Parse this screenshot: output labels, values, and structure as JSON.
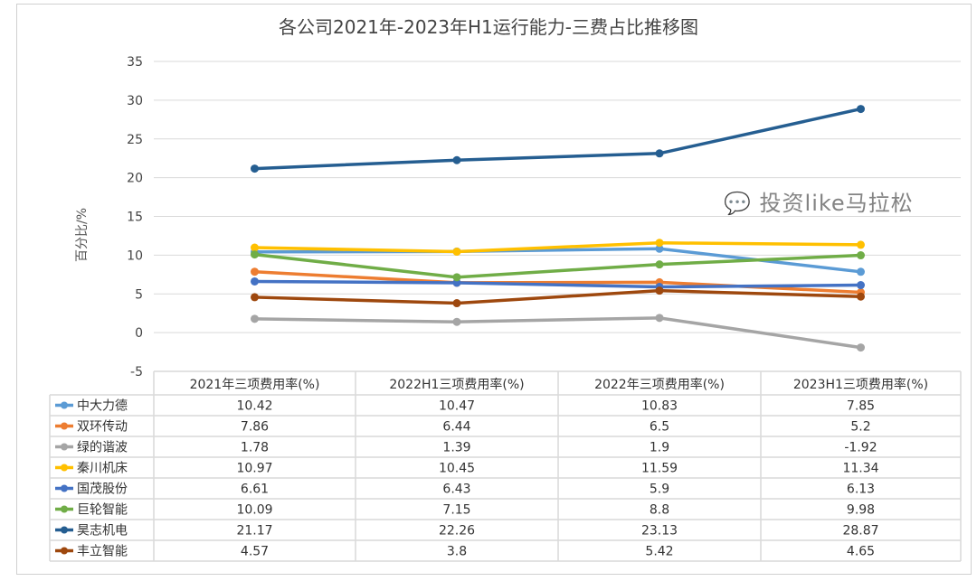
{
  "chart_data": {
    "type": "line",
    "title": "各公司2021年-2023年H1运行能力-三费占比推移图",
    "ylabel": "百分比/%",
    "xlabel": "",
    "ylim": [
      -5,
      35
    ],
    "yticks": [
      -5,
      0,
      5,
      10,
      15,
      20,
      25,
      30,
      35
    ],
    "grid": true,
    "legend": "data-table",
    "categories": [
      "2021年三项费用率(%)",
      "2022H1三项费用率(%)",
      "2022年三项费用率(%)",
      "2023H1三项费用率(%)"
    ],
    "series": [
      {
        "name": "中大力德",
        "color": "#5b9bd5",
        "values": [
          10.42,
          10.47,
          10.83,
          7.85
        ]
      },
      {
        "name": "双环传动",
        "color": "#ed7d31",
        "values": [
          7.86,
          6.44,
          6.5,
          5.2
        ]
      },
      {
        "name": "绿的谐波",
        "color": "#a5a5a5",
        "values": [
          1.78,
          1.39,
          1.9,
          -1.92
        ]
      },
      {
        "name": "秦川机床",
        "color": "#ffc000",
        "values": [
          10.97,
          10.45,
          11.59,
          11.34
        ]
      },
      {
        "name": "国茂股份",
        "color": "#4472c4",
        "values": [
          6.61,
          6.43,
          5.9,
          6.13
        ]
      },
      {
        "name": "巨轮智能",
        "color": "#70ad47",
        "values": [
          10.09,
          7.15,
          8.8,
          9.98
        ]
      },
      {
        "name": "昊志机电",
        "color": "#255e91",
        "values": [
          21.17,
          22.26,
          23.13,
          28.87
        ]
      },
      {
        "name": "丰立智能",
        "color": "#9e480e",
        "values": [
          4.57,
          3.8,
          5.42,
          4.65
        ]
      }
    ]
  },
  "watermark": "投资like马拉松"
}
